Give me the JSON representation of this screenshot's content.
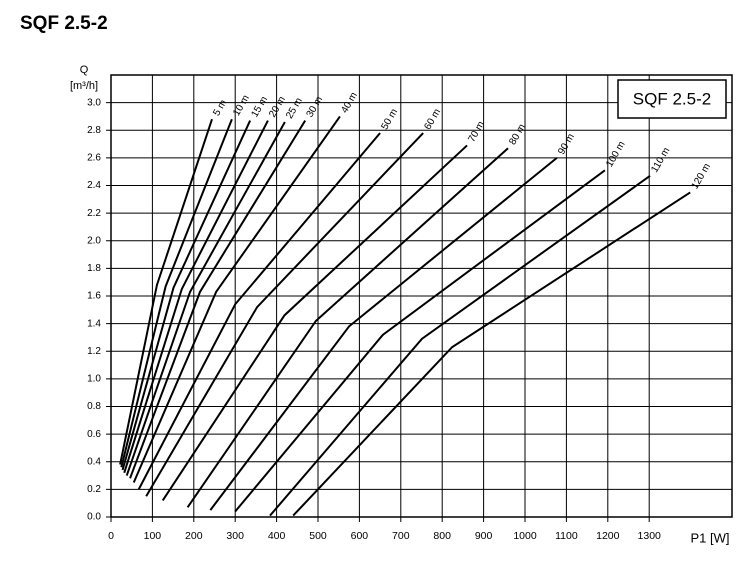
{
  "chart_data": {
    "type": "line",
    "title": "SQF 2.5-2",
    "annotation": "SQF 2.5-2",
    "y_label": "Q",
    "y_unit": "[m³/h]",
    "x_label": "P1 [W]",
    "xlim": [
      0,
      1500
    ],
    "ylim": [
      0,
      3.2
    ],
    "xticks": [
      0,
      100,
      200,
      300,
      400,
      500,
      600,
      700,
      800,
      900,
      1000,
      1100,
      1200,
      1300
    ],
    "yticks": [
      {
        "value": 0,
        "label": "0.0"
      },
      0.2,
      0.4,
      0.6,
      0.8,
      {
        "value": 1,
        "label": "1.0"
      },
      1.2,
      1.4,
      1.6,
      1.8,
      {
        "value": 2,
        "label": "2.0"
      },
      2.2,
      2.4,
      2.6,
      2.8,
      {
        "value": 3,
        "label": "3.0"
      }
    ],
    "grid": true,
    "color": "#000000",
    "series": [
      {
        "name": "5 m",
        "x": [
          22,
          111,
          244
        ],
        "values": [
          0.38,
          1.68,
          2.88
        ]
      },
      {
        "name": "10 m",
        "x": [
          25,
          132,
          292
        ],
        "values": [
          0.36,
          1.67,
          2.88
        ]
      },
      {
        "name": "15 m",
        "x": [
          28,
          151,
          336
        ],
        "values": [
          0.34,
          1.66,
          2.87
        ]
      },
      {
        "name": "20 m",
        "x": [
          32,
          171,
          379
        ],
        "values": [
          0.32,
          1.65,
          2.87
        ]
      },
      {
        "name": "25 m",
        "x": [
          38,
          191,
          420
        ],
        "values": [
          0.3,
          1.63,
          2.86
        ]
      },
      {
        "name": "30 m",
        "x": [
          46,
          215,
          469
        ],
        "values": [
          0.28,
          1.63,
          2.87
        ]
      },
      {
        "name": "40 m",
        "x": [
          55,
          254,
          553
        ],
        "values": [
          0.25,
          1.63,
          2.9
        ]
      },
      {
        "name": "50 m",
        "x": [
          67,
          300,
          650
        ],
        "values": [
          0.2,
          1.54,
          2.78
        ]
      },
      {
        "name": "60 m",
        "x": [
          85,
          353,
          754
        ],
        "values": [
          0.15,
          1.52,
          2.78
        ]
      },
      {
        "name": "70 m",
        "x": [
          125,
          419,
          860
        ],
        "values": [
          0.12,
          1.46,
          2.69
        ]
      },
      {
        "name": "80 m",
        "x": [
          185,
          495,
          959
        ],
        "values": [
          0.07,
          1.42,
          2.67
        ]
      },
      {
        "name": "90 m",
        "x": [
          240,
          575,
          1077
        ],
        "values": [
          0.05,
          1.38,
          2.6
        ]
      },
      {
        "name": "100 m",
        "x": [
          300,
          657,
          1193
        ],
        "values": [
          0.04,
          1.32,
          2.51
        ]
      },
      {
        "name": "110 m",
        "x": [
          384,
          751,
          1302
        ],
        "values": [
          0.01,
          1.29,
          2.47
        ]
      },
      {
        "name": "120 m",
        "x": [
          440,
          824,
          1399
        ],
        "values": [
          0.01,
          1.23,
          2.35
        ]
      }
    ]
  }
}
